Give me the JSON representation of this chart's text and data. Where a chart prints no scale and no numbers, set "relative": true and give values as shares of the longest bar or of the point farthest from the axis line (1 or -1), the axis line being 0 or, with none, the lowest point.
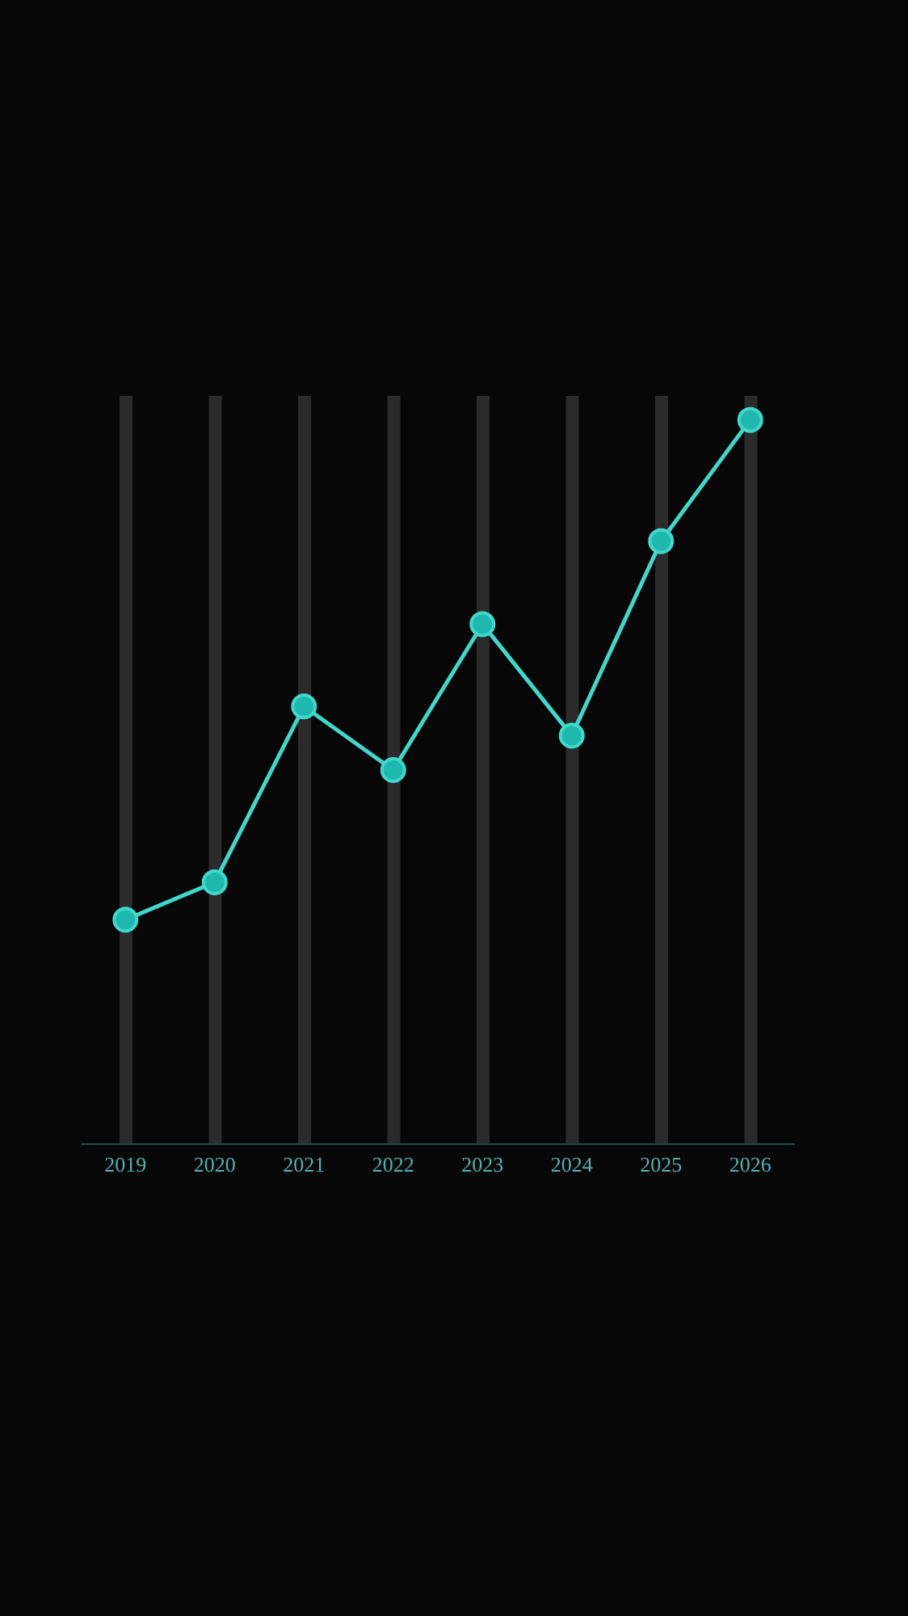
{
  "chart_data": {
    "type": "line",
    "relative": true,
    "categories": [
      "2019",
      "2020",
      "2021",
      "2022",
      "2023",
      "2024",
      "2025",
      "2026"
    ],
    "series": [
      {
        "type": "bar",
        "color": "#2b2b2b",
        "values": [
          1,
          1,
          1,
          1,
          1,
          1,
          1,
          1
        ]
      },
      {
        "color": "#3fd9cc",
        "values": [
          0.3,
          0.35,
          0.585,
          0.5,
          0.695,
          0.546,
          0.806,
          0.968
        ]
      }
    ],
    "marker": "circle"
  }
}
